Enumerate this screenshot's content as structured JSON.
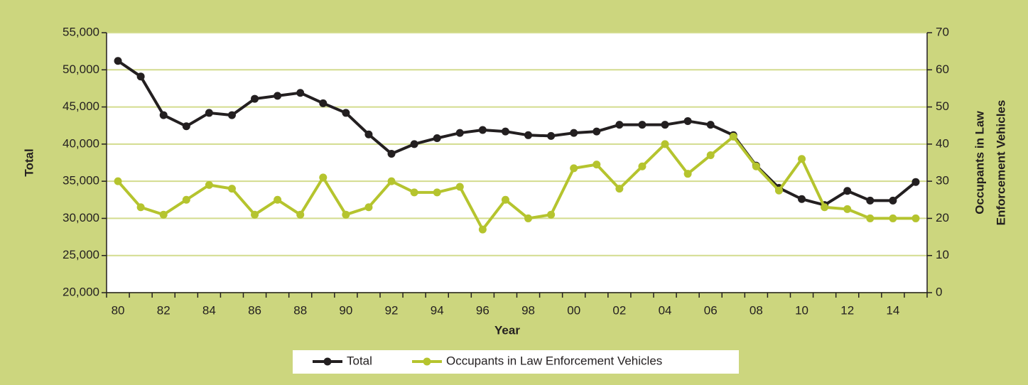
{
  "chart_data": {
    "type": "line",
    "xlabel": "Year",
    "ylabel": "Total",
    "y2label": [
      "Occupants in Law",
      "Enforcement Vehicles"
    ],
    "categories": [
      "80",
      null,
      "82",
      null,
      "84",
      null,
      "86",
      null,
      "88",
      null,
      "90",
      null,
      "92",
      null,
      "94",
      null,
      "96",
      null,
      "98",
      null,
      "00",
      null,
      "02",
      null,
      "04",
      null,
      "06",
      null,
      "08",
      null,
      "10",
      null,
      "12",
      null,
      "14",
      null
    ],
    "series": [
      {
        "name": "Total",
        "color": "#231f20",
        "values": [
          51200,
          49100,
          43900,
          42400,
          44200,
          43900,
          46100,
          46500,
          46900,
          45500,
          44200,
          41300,
          38700,
          40000,
          40800,
          41500,
          41900,
          41700,
          41200,
          41100,
          41500,
          41700,
          42600,
          42600,
          42600,
          43100,
          42600,
          41200,
          37100,
          34100,
          32600,
          31800,
          33700,
          32400,
          32400,
          34900
        ]
      },
      {
        "name": "Occupants in Law Enforcement Vehicles",
        "color": "#b5c42e",
        "axis": "y2",
        "values": [
          30,
          23,
          21,
          25,
          29,
          28,
          21,
          25,
          21,
          31,
          21,
          23,
          30,
          27,
          27,
          28.5,
          17,
          25,
          20,
          21,
          33.5,
          34.5,
          28,
          34,
          40,
          32,
          37,
          42,
          34,
          27.5,
          36,
          23,
          22.5,
          20,
          20,
          20
        ]
      }
    ],
    "ylim": [
      20000,
      55000
    ],
    "yticks": [
      {
        "value": 20000,
        "label": "20,000"
      },
      {
        "value": 25000,
        "label": "25,000"
      },
      {
        "value": 30000,
        "label": "30,000"
      },
      {
        "value": 35000,
        "label": "35,000"
      },
      {
        "value": 40000,
        "label": "40,000"
      },
      {
        "value": 45000,
        "label": "45,000"
      },
      {
        "value": 50000,
        "label": "50,000"
      },
      {
        "value": 55000,
        "label": "55,000"
      }
    ],
    "y2lim": [
      0,
      70
    ],
    "y2ticks": [
      0,
      10,
      20,
      30,
      40,
      50,
      60,
      70
    ],
    "grid": true,
    "legend": "bottom"
  }
}
